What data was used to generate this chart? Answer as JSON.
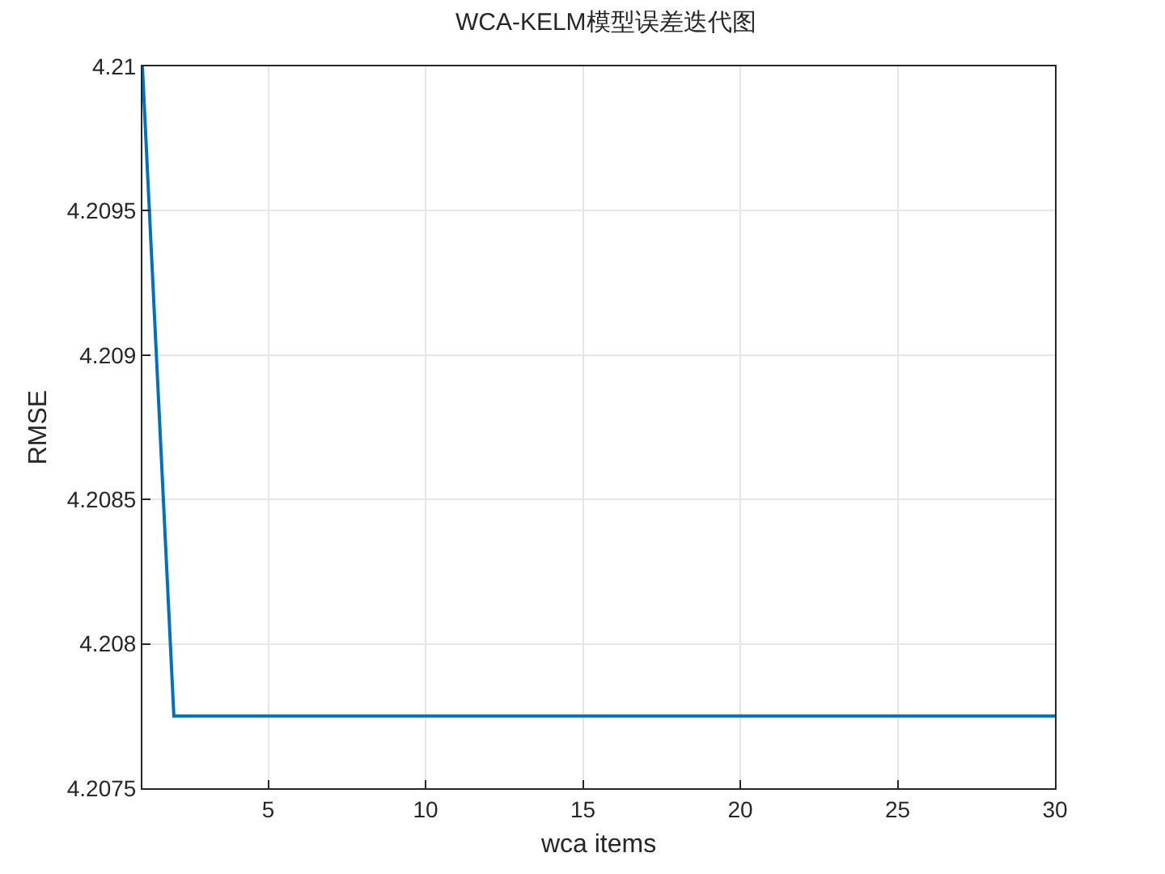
{
  "chart_data": {
    "type": "line",
    "title": "WCA-KELM模型误差迭代图",
    "xlabel": "wca items",
    "ylabel": "RMSE",
    "x": [
      1,
      2,
      3,
      4,
      5,
      6,
      7,
      8,
      9,
      10,
      11,
      12,
      13,
      14,
      15,
      16,
      17,
      18,
      19,
      20,
      21,
      22,
      23,
      24,
      25,
      26,
      27,
      28,
      29,
      30
    ],
    "series": [
      {
        "color": "#0072bd",
        "values": [
          4.21,
          4.20775,
          4.20775,
          4.20775,
          4.20775,
          4.20775,
          4.20775,
          4.20775,
          4.20775,
          4.20775,
          4.20775,
          4.20775,
          4.20775,
          4.20775,
          4.20775,
          4.20775,
          4.20775,
          4.20775,
          4.20775,
          4.20775,
          4.20775,
          4.20775,
          4.20775,
          4.20775,
          4.20775,
          4.20775,
          4.20775,
          4.20775,
          4.20775,
          4.20775
        ]
      }
    ],
    "xlim": [
      1,
      30
    ],
    "xticks": [
      5,
      10,
      15,
      20,
      25,
      30
    ],
    "ylim": [
      4.2075,
      4.21
    ],
    "yticks": [
      4.2075,
      4.208,
      4.2085,
      4.209,
      4.2095,
      4.21
    ],
    "grid": true,
    "marker": "none",
    "line_style": "solid"
  }
}
